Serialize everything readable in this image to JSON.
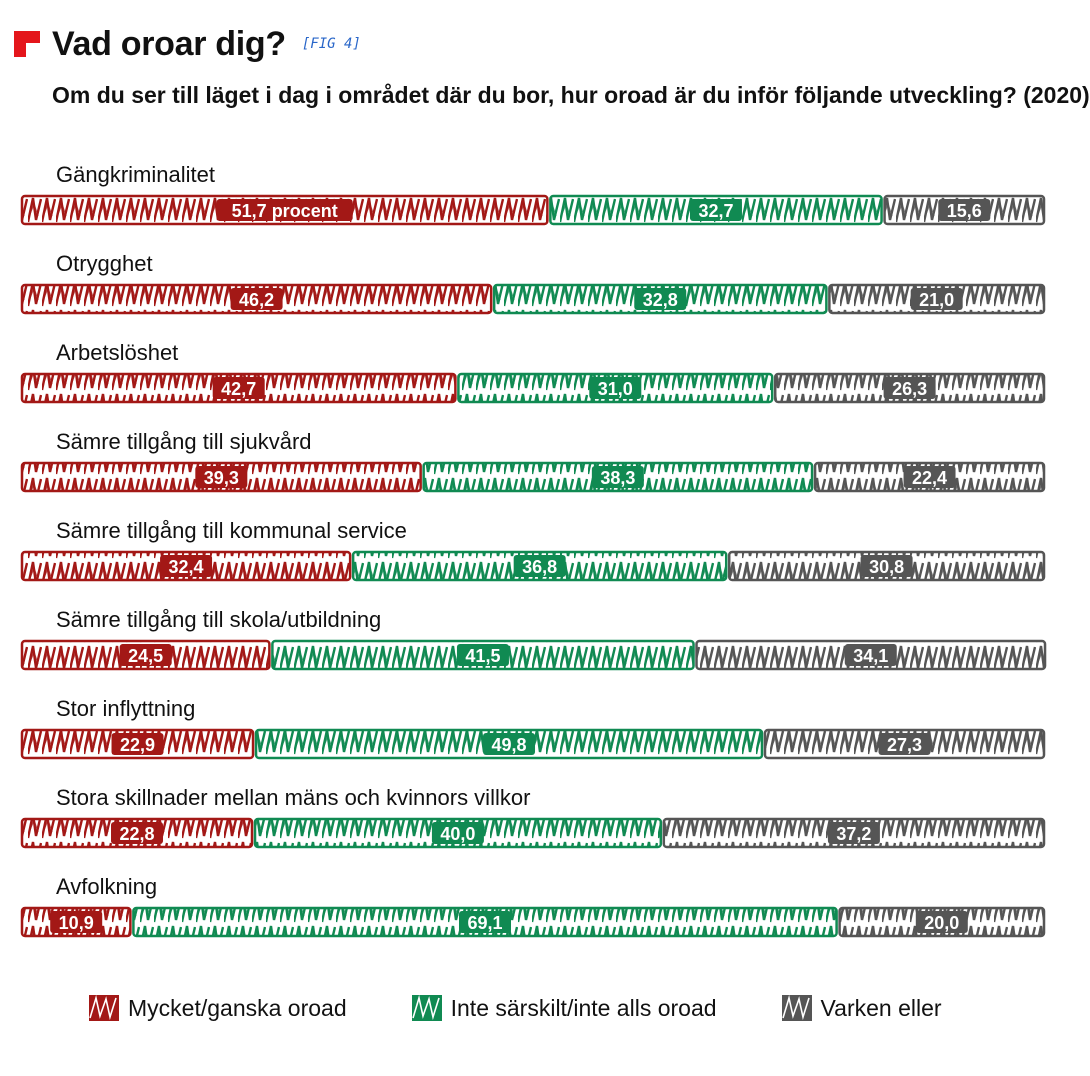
{
  "header": {
    "title": "Vad oroar dig?",
    "fig_tag": "[FIG 4]",
    "subtitle": "Om du ser till läget i dag i området där du bor, hur oroad är du inför följande utveckling? (2020)"
  },
  "colors": {
    "brand": "#e4161b",
    "fig_tag": "#2a67c9",
    "series": [
      "#a31816",
      "#108a52",
      "#555555"
    ]
  },
  "chart_data": {
    "type": "bar",
    "orientation": "horizontal",
    "stacked": true,
    "normalized_to": 100,
    "categories": [
      "Gängkriminalitet",
      "Otrygghet",
      "Arbetslöshet",
      "Sämre tillgång till sjukvård",
      "Sämre tillgång till kommunal service",
      "Sämre tillgång till skola/utbildning",
      "Stor inflyttning",
      "Stora skillnader mellan mäns och kvinnors villkor",
      "Avfolkning"
    ],
    "series": [
      {
        "name": "Mycket/ganska oroad",
        "values": [
          51.7,
          46.2,
          42.7,
          39.3,
          32.4,
          24.5,
          22.9,
          22.8,
          10.9
        ],
        "labels": [
          "51,7 procent",
          "46,2",
          "42,7",
          "39,3",
          "32,4",
          "24,5",
          "22,9",
          "22,8",
          "10,9"
        ]
      },
      {
        "name": "Inte särskilt/inte alls oroad",
        "values": [
          32.7,
          32.8,
          31.0,
          38.3,
          36.8,
          41.5,
          49.8,
          40.0,
          69.1
        ],
        "labels": [
          "32,7",
          "32,8",
          "31,0",
          "38,3",
          "36,8",
          "41,5",
          "49,8",
          "40,0",
          "69,1"
        ]
      },
      {
        "name": "Varken eller",
        "values": [
          15.6,
          21.0,
          26.3,
          22.4,
          30.8,
          34.1,
          27.3,
          37.2,
          20.0
        ],
        "labels": [
          "15,6",
          "21,0",
          "26,3",
          "22,4",
          "30,8",
          "34,1",
          "27,3",
          "37,2",
          "20,0"
        ]
      }
    ],
    "legend_position": "bottom",
    "grid": false
  }
}
